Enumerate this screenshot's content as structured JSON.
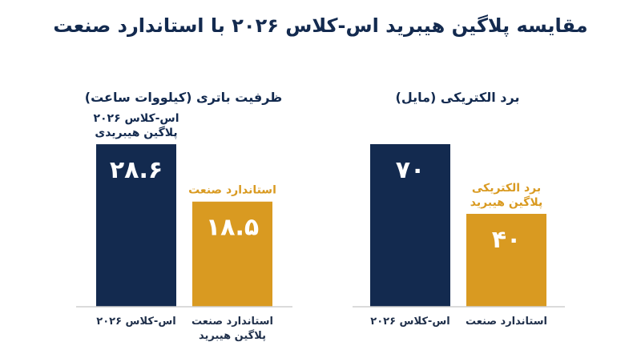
{
  "title": "مقایسه پلاگین هیبرید اس-کلاس ۲۰۲۶ با استاندارد صنعت",
  "colors": {
    "navy": "#132a4f",
    "gold": "#d99a21",
    "axis": "#cfcfcf"
  },
  "chart_data": [
    {
      "type": "bar",
      "title": "برد الکتریکی (مایل)",
      "categories": [
        "اس-کلاس ۲۰۲۶",
        "استاندارد صنعت"
      ],
      "values": [
        70,
        40
      ],
      "value_labels": [
        "۷۰",
        "۴۰"
      ],
      "ylim": [
        0,
        80
      ],
      "bar_colors": [
        "#132a4f",
        "#d99a21"
      ],
      "annotations": [
        {
          "bar": 1,
          "lines": [
            "برد الکتریکی",
            "پلاگین هیبرید"
          ],
          "color": "#d99a21"
        }
      ]
    },
    {
      "type": "bar",
      "title": "ظرفیت باتری (کیلووات ساعت)",
      "categories": [
        "اس-کلاس ۲۰۲۶",
        "استاندارد صنعت پلاگین هیبرید"
      ],
      "value_labels": [
        "۲۸.۶",
        "۱۸.۵"
      ],
      "values": [
        28.6,
        18.5
      ],
      "ylim": [
        0,
        32.7
      ],
      "bar_colors": [
        "#132a4f",
        "#d99a21"
      ],
      "annotations": [
        {
          "bar": 0,
          "lines": [
            "اس-کلاس ۲۰۲۶",
            "پلاگین هیبریدی"
          ],
          "color": "#132a4f"
        },
        {
          "bar": 1,
          "lines": [
            "استاندارد صنعت"
          ],
          "color": "#d99a21"
        }
      ]
    }
  ]
}
